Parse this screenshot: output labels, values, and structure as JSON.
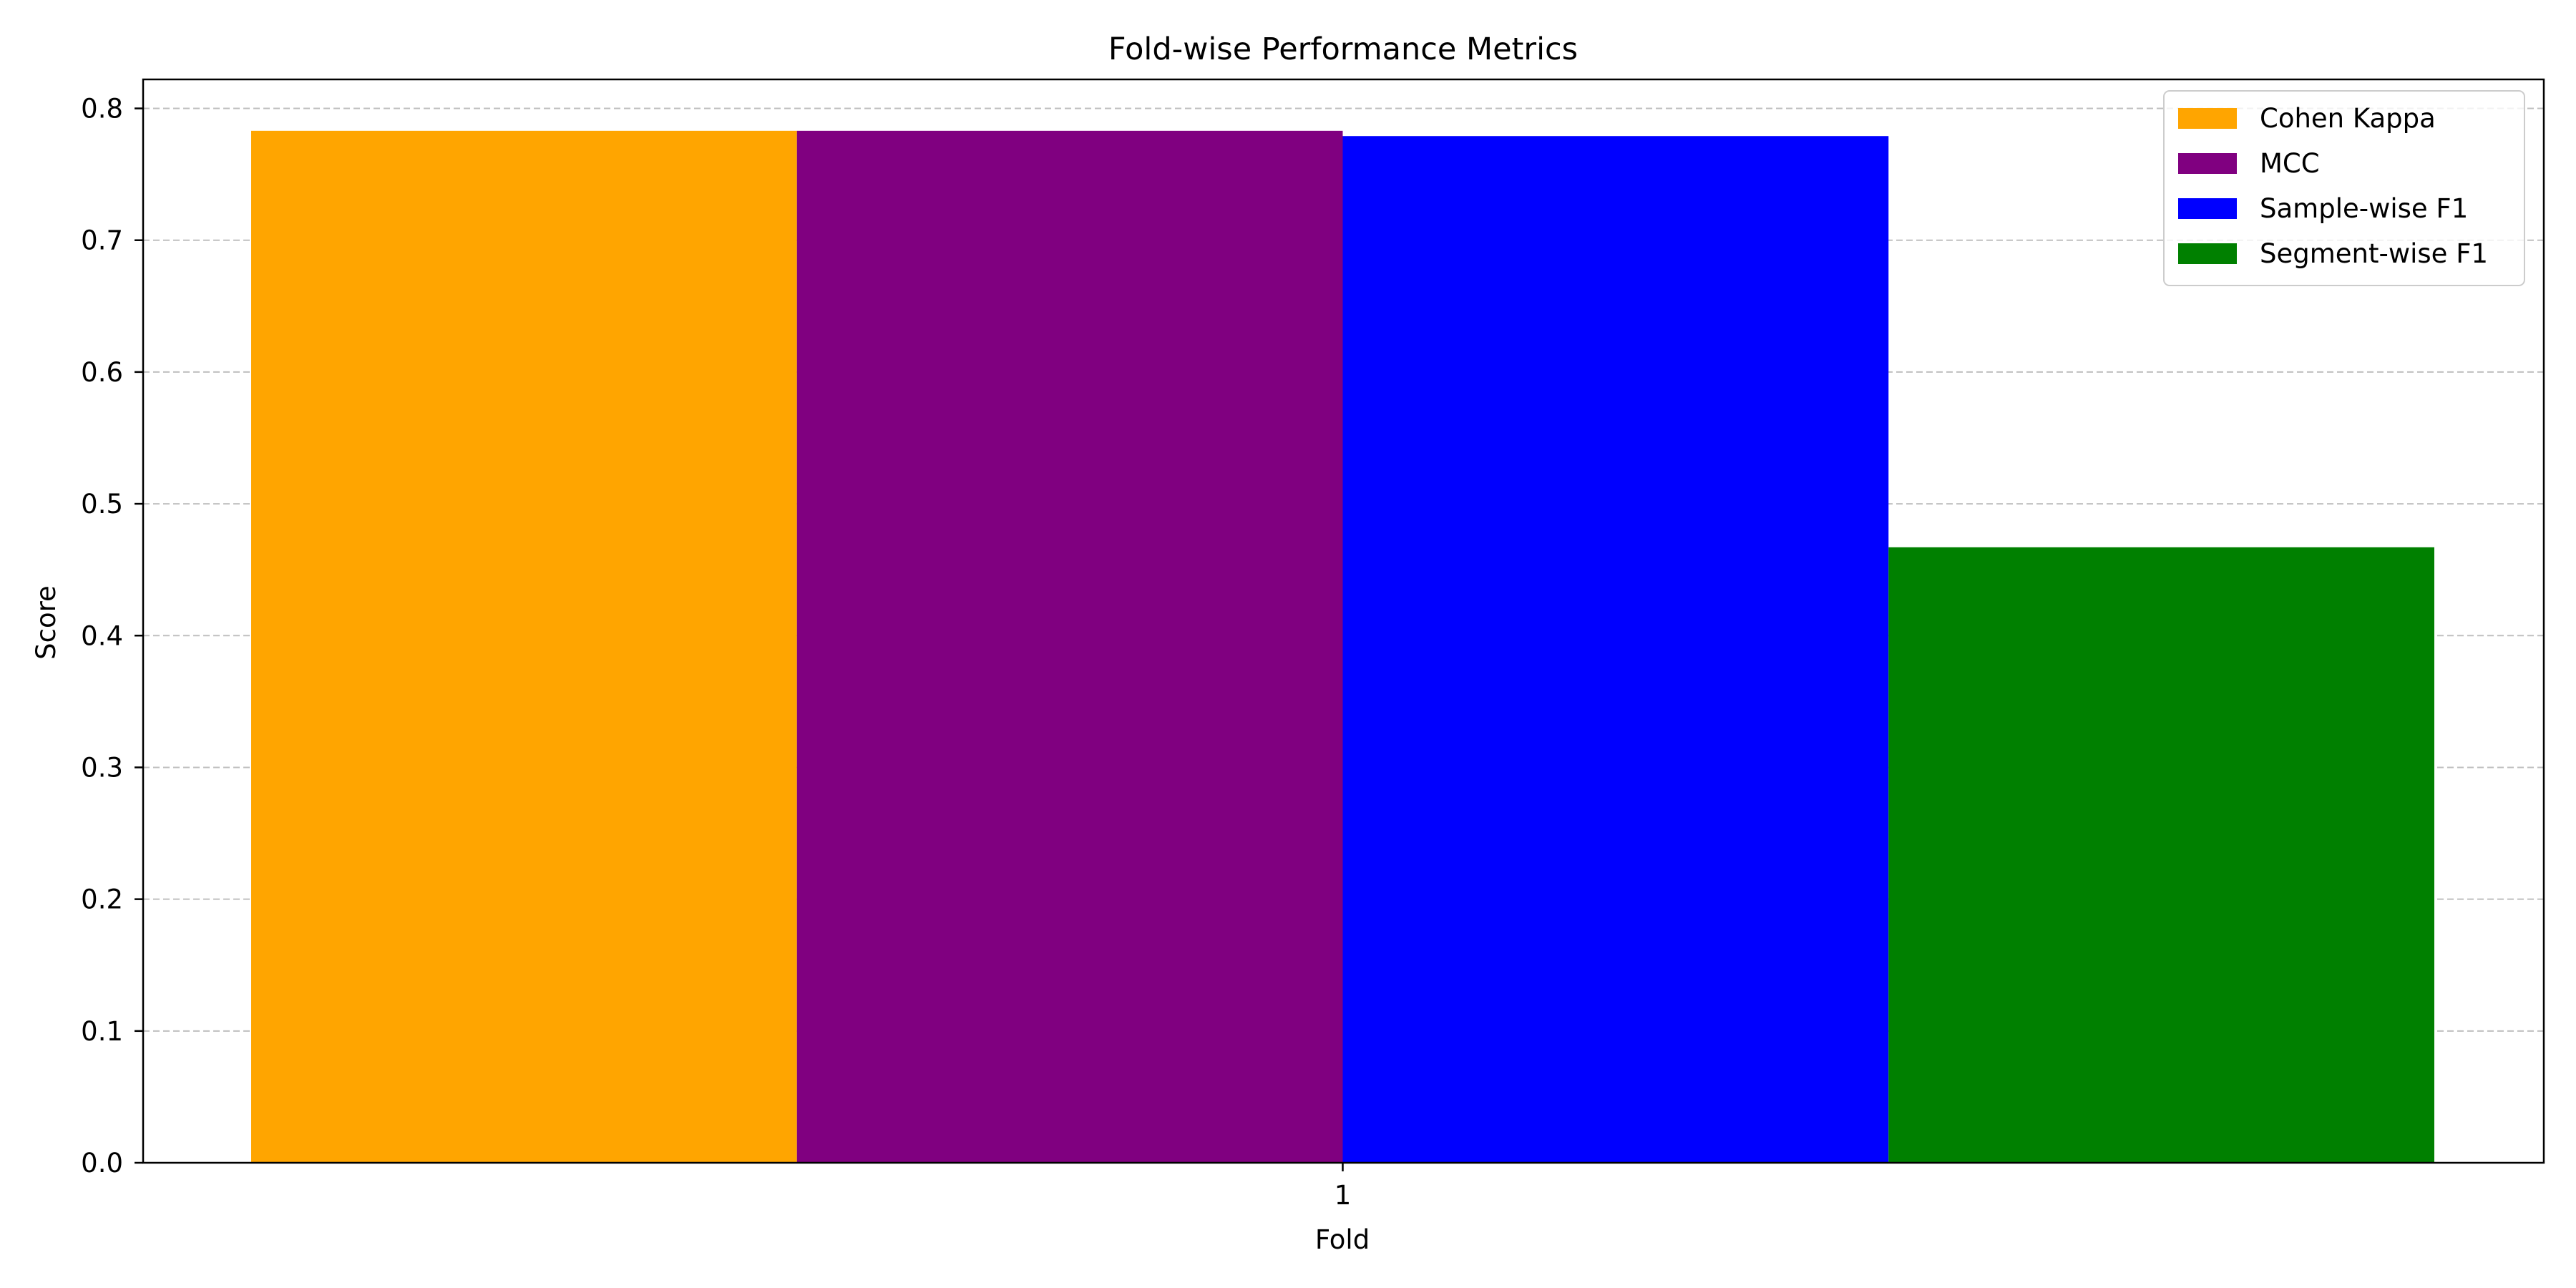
{
  "chart_data": {
    "type": "bar",
    "title": "Fold-wise Performance Metrics",
    "xlabel": "Fold",
    "ylabel": "Score",
    "categories": [
      "1"
    ],
    "series": [
      {
        "name": "Cohen Kappa",
        "values": [
          0.783
        ],
        "color": "#FFA500"
      },
      {
        "name": "MCC",
        "values": [
          0.783
        ],
        "color": "#800080"
      },
      {
        "name": "Sample-wise F1",
        "values": [
          0.779
        ],
        "color": "#0000FF"
      },
      {
        "name": "Segment-wise F1",
        "values": [
          0.467
        ],
        "color": "#008000"
      }
    ],
    "ylim": [
      0,
      0.822
    ],
    "yticks": [
      "0.0",
      "0.1",
      "0.2",
      "0.3",
      "0.4",
      "0.5",
      "0.6",
      "0.7",
      "0.8"
    ],
    "grid": "y-dashed",
    "legend_position": "top-right"
  }
}
